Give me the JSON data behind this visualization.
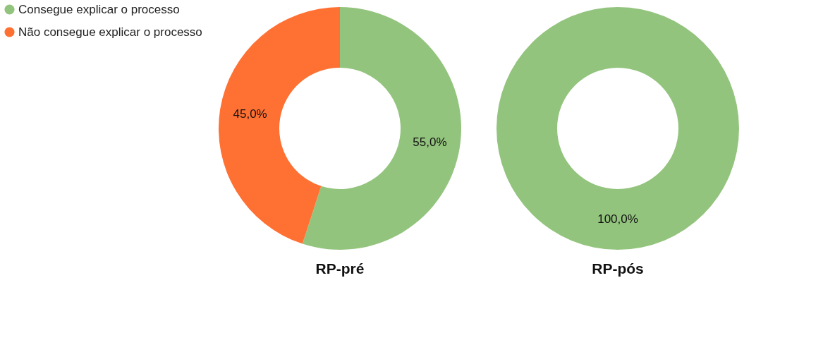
{
  "chart_data": [
    {
      "type": "donut",
      "title": "RP-pré",
      "categories": [
        "Consegue explicar o processo",
        "Não consegue explicar o processo"
      ],
      "values": [
        55.0,
        45.0
      ],
      "colors": [
        "#93c47d",
        "#ff7033"
      ],
      "value_labels": [
        "55,0%",
        "45,0%"
      ],
      "legend": "left"
    },
    {
      "type": "donut",
      "title": "RP-pós",
      "categories": [
        null
      ],
      "values": [
        100.0
      ],
      "colors": [
        "#93c47d"
      ],
      "value_labels": [
        "100,0%"
      ],
      "legend": false
    }
  ]
}
